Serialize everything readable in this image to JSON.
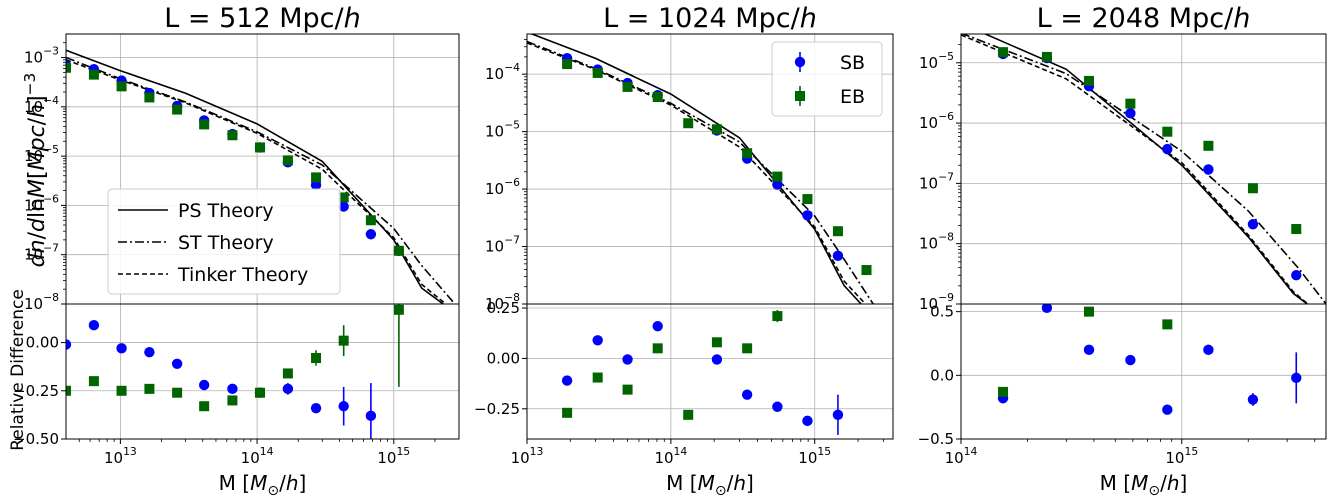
{
  "figure": {
    "ylabel_top": "dn/dlnM[Mpc/h]^-3",
    "ylabel_bottom": "Relative Difference",
    "colors": {
      "SB": "#0000ff",
      "EB": "#006400",
      "theory": "#000000",
      "grid": "#b0b0b0"
    }
  },
  "legend_theory": [
    {
      "name": "PS Theory",
      "style": "solid"
    },
    {
      "name": "ST Theory",
      "style": "dashdot"
    },
    {
      "name": "Tinker Theory",
      "style": "dashed"
    }
  ],
  "legend_data": [
    {
      "name": "SB",
      "marker": "circle"
    },
    {
      "name": "EB",
      "marker": "square"
    }
  ],
  "chart_data": [
    {
      "type": "scatter",
      "title": "L = 512 Mpc/h",
      "xlabel": "M [M_sun/h]",
      "xscale": "log",
      "xlim": [
        4000000000000.0,
        3000000000000000.0
      ],
      "xticks": [
        {
          "v": 10000000000000.0,
          "label": "10^13"
        },
        {
          "v": 100000000000000.0,
          "label": "10^14"
        },
        {
          "v": 1000000000000000.0,
          "label": "10^15"
        }
      ],
      "top": {
        "ylim": [
          1e-08,
          0.003
        ],
        "yscale": "log",
        "yticks": [
          {
            "v": 1e-08,
            "label": "10^-8"
          },
          {
            "v": 1e-07,
            "label": "10^-7"
          },
          {
            "v": 1e-06,
            "label": "10^-6"
          },
          {
            "v": 1e-05,
            "label": "10^-5"
          },
          {
            "v": 0.0001,
            "label": "10^-4"
          },
          {
            "v": 0.001,
            "label": "10^-3"
          }
        ],
        "legend": "bottom-left",
        "series": [
          {
            "name": "SB",
            "x": [
              4000000000000.0,
              6400000000000.0,
              10200000000000.0,
              16300000000000.0,
              26000000000000.0,
              41000000000000.0,
              66000000000000.0,
              105000000000000.0,
              168000000000000.0,
              270000000000000.0,
              430000000000000.0,
              680000000000000.0,
              1090000000000000.0
            ],
            "y": [
              0.0007,
              0.00058,
              0.00034,
              0.00019,
              0.000104,
              5.3e-05,
              2.8e-05,
              1.5e-05,
              7.5e-06,
              2.6e-06,
              9.5e-07,
              2.6e-07,
              1.2e-07
            ]
          },
          {
            "name": "EB",
            "x": [
              4000000000000.0,
              6400000000000.0,
              10200000000000.0,
              16300000000000.0,
              26000000000000.0,
              41000000000000.0,
              66000000000000.0,
              105000000000000.0,
              168000000000000.0,
              270000000000000.0,
              430000000000000.0,
              680000000000000.0,
              1090000000000000.0
            ],
            "y": [
              0.00062,
              0.00045,
              0.00026,
              0.000155,
              8.8e-05,
              4.4e-05,
              2.65e-05,
              1.5e-05,
              8.2e-06,
              3.7e-06,
              1.45e-06,
              5e-07,
              1.2e-07
            ]
          }
        ],
        "theory": [
          {
            "name": "PS Theory",
            "x": [
              4000000000000.0,
              10000000000000.0,
              30000000000000.0,
              100000000000000.0,
              300000000000000.0,
              1000000000000000.0,
              1600000000000000.0,
              2300000000000000.0
            ],
            "y": [
              0.0014,
              0.00054,
              0.000188,
              4.5e-05,
              7.8e-06,
              2e-07,
              2.1e-08,
              1e-08
            ]
          },
          {
            "name": "ST Theory",
            "x": [
              4000000000000.0,
              10000000000000.0,
              30000000000000.0,
              100000000000000.0,
              300000000000000.0,
              1000000000000000.0,
              1600000000000000.0,
              2800000000000000.0
            ],
            "y": [
              0.001,
              0.00037,
              0.000125,
              3.1e-05,
              6.6e-06,
              3.4e-07,
              6e-08,
              1e-08
            ]
          },
          {
            "name": "Tinker Theory",
            "x": [
              4000000000000.0,
              10000000000000.0,
              30000000000000.0,
              100000000000000.0,
              300000000000000.0,
              1000000000000000.0,
              1600000000000000.0,
              2400000000000000.0
            ],
            "y": [
              0.0009,
              0.00035,
              0.00012,
              2.9e-05,
              5.4e-06,
              2.2e-07,
              2.5e-08,
              1e-08
            ]
          }
        ]
      },
      "bottom": {
        "ylim": [
          -0.5,
          0.2
        ],
        "yticks": [
          {
            "v": -0.5,
            "label": "−0.50"
          },
          {
            "v": -0.25,
            "label": "−0.25"
          },
          {
            "v": 0,
            "label": "0.00"
          }
        ],
        "series": [
          {
            "name": "SB",
            "x": [
              4000000000000.0,
              6400000000000.0,
              10200000000000.0,
              16300000000000.0,
              26000000000000.0,
              41000000000000.0,
              66000000000000.0,
              105000000000000.0,
              168000000000000.0,
              270000000000000.0,
              430000000000000.0,
              680000000000000.0
            ],
            "y": [
              -0.01,
              0.09,
              -0.03,
              -0.05,
              -0.11,
              -0.22,
              -0.24,
              -0.26,
              -0.24,
              -0.34,
              -0.33,
              -0.38
            ],
            "err": [
              0,
              0,
              0,
              0,
              0,
              0,
              0,
              0,
              0.03,
              0.02,
              0.1,
              0.17
            ]
          },
          {
            "name": "EB",
            "x": [
              4000000000000.0,
              6400000000000.0,
              10200000000000.0,
              16300000000000.0,
              26000000000000.0,
              41000000000000.0,
              66000000000000.0,
              105000000000000.0,
              168000000000000.0,
              270000000000000.0,
              430000000000000.0,
              1090000000000000.0
            ],
            "y": [
              -0.25,
              -0.2,
              -0.25,
              -0.24,
              -0.26,
              -0.33,
              -0.3,
              -0.26,
              -0.16,
              -0.08,
              0.01,
              0.17
            ],
            "err": [
              0,
              0,
              0,
              0,
              0,
              0,
              0,
              0.02,
              0.02,
              0.04,
              0.08,
              0.4
            ]
          }
        ]
      }
    },
    {
      "type": "scatter",
      "title": "L = 1024 Mpc/h",
      "xlabel": "M [M_sun/h]",
      "xscale": "log",
      "xlim": [
        10000000000000.0,
        3500000000000000.0
      ],
      "xticks": [
        {
          "v": 10000000000000.0,
          "label": "10^13"
        },
        {
          "v": 100000000000000.0,
          "label": "10^14"
        },
        {
          "v": 1000000000000000.0,
          "label": "10^15"
        }
      ],
      "top": {
        "ylim": [
          1e-08,
          0.0005
        ],
        "yscale": "log",
        "yticks": [
          {
            "v": 1e-08,
            "label": "10^-8"
          },
          {
            "v": 1e-07,
            "label": "10^-7"
          },
          {
            "v": 1e-06,
            "label": "10^-6"
          },
          {
            "v": 1e-05,
            "label": "10^-5"
          },
          {
            "v": 0.0001,
            "label": "10^-4"
          }
        ],
        "legend": "top-right",
        "series": [
          {
            "name": "SB",
            "x": [
              19000000000000.0,
              31000000000000.0,
              50000000000000.0,
              81000000000000.0,
              209000000000000.0,
              339000000000000.0,
              550000000000000.0,
              890000000000000.0,
              1450000000000000.0
            ],
            "y": [
              0.00019,
              0.00012,
              7e-05,
              4.3e-05,
              1.05e-05,
              3.4e-06,
              1.2e-06,
              3.5e-07,
              6.9e-08
            ]
          },
          {
            "name": "EB",
            "x": [
              19000000000000.0,
              31000000000000.0,
              50000000000000.0,
              81000000000000.0,
              132000000000000.0,
              209000000000000.0,
              339000000000000.0,
              550000000000000.0,
              890000000000000.0,
              1450000000000000.0,
              2290000000000000.0
            ],
            "y": [
              0.00015,
              0.000105,
              6e-05,
              4e-05,
              1.4e-05,
              1.1e-05,
              4.2e-06,
              1.65e-06,
              6.7e-07,
              1.85e-07,
              3.9e-08
            ]
          }
        ],
        "theory": [
          {
            "name": "PS Theory",
            "x": [
              10000000000000.0,
              30000000000000.0,
              100000000000000.0,
              300000000000000.0,
              1000000000000000.0,
              1600000000000000.0,
              2100000000000000.0
            ],
            "y": [
              0.00054,
              0.000188,
              4.5e-05,
              7.8e-06,
              2e-07,
              2.1e-08,
              1e-08
            ]
          },
          {
            "name": "ST Theory",
            "x": [
              10000000000000.0,
              30000000000000.0,
              100000000000000.0,
              300000000000000.0,
              1000000000000000.0,
              1600000000000000.0,
              2550000000000000.0
            ],
            "y": [
              0.00037,
              0.000125,
              3.1e-05,
              6.6e-06,
              3.4e-07,
              6e-08,
              1e-08
            ]
          },
          {
            "name": "Tinker Theory",
            "x": [
              10000000000000.0,
              30000000000000.0,
              100000000000000.0,
              300000000000000.0,
              1000000000000000.0,
              1600000000000000.0,
              2250000000000000.0
            ],
            "y": [
              0.00035,
              0.00012,
              2.9e-05,
              5.4e-06,
              2.2e-07,
              2.5e-08,
              1e-08
            ]
          }
        ]
      },
      "bottom": {
        "ylim": [
          -0.4,
          0.27
        ],
        "yticks": [
          {
            "v": -0.25,
            "label": "−0.25"
          },
          {
            "v": 0,
            "label": "0.00"
          },
          {
            "v": 0.25,
            "label": "0.25"
          }
        ],
        "series": [
          {
            "name": "SB",
            "x": [
              19000000000000.0,
              31000000000000.0,
              50000000000000.0,
              81000000000000.0,
              209000000000000.0,
              339000000000000.0,
              550000000000000.0,
              890000000000000.0,
              1450000000000000.0
            ],
            "y": [
              -0.11,
              0.09,
              -0.005,
              0.16,
              -0.005,
              -0.18,
              -0.24,
              -0.31,
              -0.28
            ],
            "err": [
              0,
              0,
              0,
              0,
              0,
              0,
              0,
              0,
              0.1
            ]
          },
          {
            "name": "EB",
            "x": [
              19000000000000.0,
              31000000000000.0,
              50000000000000.0,
              81000000000000.0,
              132000000000000.0,
              209000000000000.0,
              339000000000000.0,
              550000000000000.0
            ],
            "y": [
              -0.27,
              -0.095,
              -0.155,
              0.05,
              -0.28,
              0.08,
              0.05,
              0.21
            ],
            "err": [
              0,
              0,
              0,
              0,
              0,
              0,
              0,
              0.03
            ]
          }
        ]
      }
    },
    {
      "type": "scatter",
      "title": "L = 2048 Mpc/h",
      "xlabel": "M [M_sun/h]",
      "xscale": "log",
      "xlim": [
        100000000000000.0,
        4500000000000000.0
      ],
      "xticks": [
        {
          "v": 100000000000000.0,
          "label": "10^14"
        },
        {
          "v": 1000000000000000.0,
          "label": "10^15"
        }
      ],
      "top": {
        "ylim": [
          1e-09,
          3e-05
        ],
        "yscale": "log",
        "yticks": [
          {
            "v": 1e-09,
            "label": "10^-9"
          },
          {
            "v": 1e-08,
            "label": "10^-8"
          },
          {
            "v": 1e-07,
            "label": "10^-7"
          },
          {
            "v": 1e-06,
            "label": "10^-6"
          },
          {
            "v": 1e-05,
            "label": "10^-5"
          }
        ],
        "legend": "none",
        "series": [
          {
            "name": "SB",
            "x": [
              155000000000000.0,
              245000000000000.0,
              380000000000000.0,
              585000000000000.0,
              860000000000000.0,
              1320000000000000.0,
              2100000000000000.0,
              3300000000000000.0
            ],
            "y": [
              1.4e-05,
              1.2e-05,
              4.1e-06,
              1.45e-06,
              3.7e-07,
              1.7e-07,
              2.1e-08,
              3e-09
            ]
          },
          {
            "name": "EB",
            "x": [
              155000000000000.0,
              245000000000000.0,
              380000000000000.0,
              585000000000000.0,
              860000000000000.0,
              1320000000000000.0,
              2100000000000000.0,
              3300000000000000.0
            ],
            "y": [
              1.5e-05,
              1.25e-05,
              5e-06,
              2.1e-06,
              7.2e-07,
              4.2e-07,
              8.3e-08,
              1.75e-08
            ]
          }
        ],
        "theory": [
          {
            "name": "PS Theory",
            "x": [
              100000000000000.0,
              300000000000000.0,
              1000000000000000.0,
              2000000000000000.0,
              3200000000000000.0,
              4000000000000000.0
            ],
            "y": [
              4.5e-05,
              7.8e-06,
              2e-07,
              1.3e-08,
              1.5e-09,
              8e-10
            ]
          },
          {
            "name": "ST Theory",
            "x": [
              100000000000000.0,
              300000000000000.0,
              1000000000000000.0,
              2000000000000000.0,
              3400000000000000.0,
              4500000000000000.0
            ],
            "y": [
              3.1e-05,
              6.6e-06,
              3.4e-07,
              3.5e-08,
              3.8e-09,
              1e-09
            ]
          },
          {
            "name": "Tinker Theory",
            "x": [
              100000000000000.0,
              300000000000000.0,
              1000000000000000.0,
              2000000000000000.0,
              3200000000000000.0,
              4000000000000000.0
            ],
            "y": [
              2.9e-05,
              5.4e-06,
              2.2e-07,
              1.4e-08,
              1.6e-09,
              8e-10
            ]
          }
        ]
      },
      "bottom": {
        "ylim": [
          -0.5,
          0.56
        ],
        "yticks": [
          {
            "v": -0.5,
            "label": "−0.5"
          },
          {
            "v": 0,
            "label": "0.0"
          },
          {
            "v": 0.5,
            "label": "0.5"
          }
        ],
        "series": [
          {
            "name": "SB",
            "x": [
              155000000000000.0,
              245000000000000.0,
              380000000000000.0,
              585000000000000.0,
              860000000000000.0,
              1320000000000000.0,
              2100000000000000.0,
              3300000000000000.0
            ],
            "y": [
              -0.18,
              0.53,
              0.2,
              0.12,
              -0.27,
              0.2,
              -0.19,
              -0.02
            ],
            "err": [
              0,
              0,
              0,
              0,
              0,
              0.04,
              0.05,
              0.2
            ]
          },
          {
            "name": "EB",
            "x": [
              155000000000000.0,
              380000000000000.0,
              860000000000000.0
            ],
            "y": [
              -0.13,
              0.5,
              0.4
            ],
            "err": [
              0,
              0,
              0
            ]
          }
        ]
      }
    }
  ]
}
